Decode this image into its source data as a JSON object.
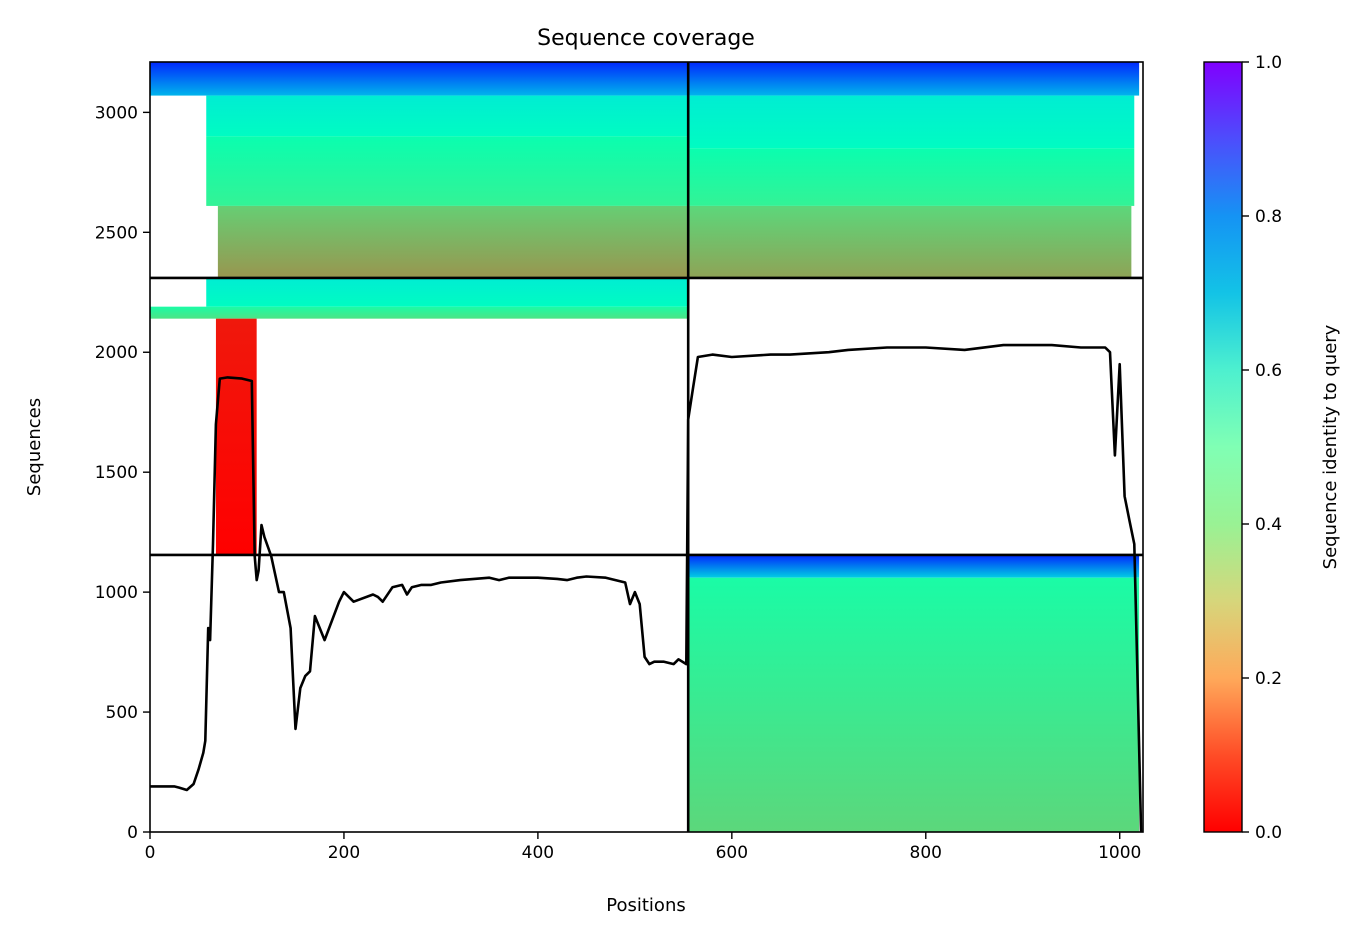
{
  "chart_data": {
    "type": "heatmap",
    "title": "Sequence coverage",
    "xlabel": "Positions",
    "ylabel": "Sequences",
    "xlim": [
      0,
      1024
    ],
    "ylim": [
      0,
      3210
    ],
    "x_ticks": [
      "0",
      "200",
      "400",
      "600",
      "800",
      "1000"
    ],
    "x_tick_values": [
      0,
      200,
      400,
      600,
      800,
      1000
    ],
    "y_ticks": [
      "0",
      "500",
      "1000",
      "1500",
      "2000",
      "2500",
      "3000"
    ],
    "y_tick_values": [
      0,
      500,
      1000,
      1500,
      2000,
      2500,
      3000
    ],
    "colorbar": {
      "label": "Sequence identity to query",
      "colormap": "rainbow_r",
      "range": [
        0.0,
        1.0
      ],
      "ticks": [
        "0.0",
        "0.2",
        "0.4",
        "0.6",
        "0.8",
        "1.0"
      ],
      "tick_values": [
        0.0,
        0.2,
        0.4,
        0.6,
        0.8,
        1.0
      ]
    },
    "grid": false,
    "block_boundaries": {
      "x": 555,
      "y": [
        1155,
        2310
      ]
    },
    "coverage_blocks": [
      {
        "x_range": [
          0,
          555
        ],
        "y_range": [
          2310,
          3210
        ],
        "bands": [
          {
            "y": [
              3070,
              3210
            ],
            "x": [
              0,
              555
            ],
            "identity_top": 0.95,
            "identity_bottom": 0.75
          },
          {
            "y": [
              2900,
              3070
            ],
            "x": [
              58,
              555
            ],
            "identity_top": 0.62,
            "identity_bottom": 0.55
          },
          {
            "y": [
              2610,
              2900
            ],
            "x": [
              58,
              555
            ],
            "identity_top": 0.48,
            "identity_bottom": 0.4
          },
          {
            "y": [
              2310,
              2610
            ],
            "x": [
              70,
              555
            ],
            "identity_top": 0.3,
            "identity_bottom": 0.2
          }
        ]
      },
      {
        "x_range": [
          555,
          1024
        ],
        "y_range": [
          2310,
          3210
        ],
        "bands": [
          {
            "y": [
              3070,
              3210
            ],
            "x": [
              555,
              1020
            ],
            "identity_top": 0.95,
            "identity_bottom": 0.75
          },
          {
            "y": [
              2850,
              3070
            ],
            "x": [
              555,
              1015
            ],
            "identity_top": 0.62,
            "identity_bottom": 0.55
          },
          {
            "y": [
              2610,
              2850
            ],
            "x": [
              555,
              1015
            ],
            "identity_top": 0.48,
            "identity_bottom": 0.4
          },
          {
            "y": [
              2310,
              2610
            ],
            "x": [
              555,
              1012
            ],
            "identity_top": 0.32,
            "identity_bottom": 0.22
          }
        ]
      },
      {
        "x_range": [
          0,
          555
        ],
        "y_range": [
          1155,
          2310
        ],
        "bands": [
          {
            "y": [
              2190,
              2310
            ],
            "x": [
              58,
              555
            ],
            "identity_top": 0.62,
            "identity_bottom": 0.55
          },
          {
            "y": [
              2140,
              2190
            ],
            "x": [
              0,
              555
            ],
            "identity_top": 0.45,
            "identity_bottom": 0.35
          },
          {
            "y": [
              1155,
              2140
            ],
            "x": [
              68,
              110
            ],
            "identity_top": 0.03,
            "identity_bottom": 0.0
          }
        ]
      },
      {
        "x_range": [
          555,
          1024
        ],
        "y_range": [
          0,
          1155
        ],
        "bands": [
          {
            "y": [
              1060,
              1155
            ],
            "x": [
              555,
              1020
            ],
            "identity_top": 0.95,
            "identity_bottom": 0.7
          },
          {
            "y": [
              0,
              1060
            ],
            "x": [
              555,
              1020
            ],
            "identity_top": 0.45,
            "identity_bottom": 0.32
          }
        ]
      }
    ],
    "series": [
      {
        "type": "line",
        "color": "#000000",
        "x": [
          0,
          10,
          25,
          30,
          38,
          45,
          50,
          55,
          57,
          60,
          62,
          65,
          68,
          72,
          80,
          95,
          105,
          108,
          110,
          112,
          115,
          118,
          125,
          133,
          138,
          145,
          150,
          155,
          160,
          165,
          170,
          180,
          195,
          200,
          205,
          210,
          230,
          235,
          240,
          250,
          260,
          265,
          270,
          280,
          290,
          300,
          320,
          350,
          360,
          370,
          400,
          420,
          430,
          440,
          450,
          470,
          490,
          495,
          500,
          505,
          510,
          515,
          520,
          530,
          540,
          545,
          553,
          555,
          560,
          565,
          580,
          600,
          640,
          660,
          700,
          720,
          760,
          800,
          840,
          880,
          930,
          960,
          985,
          990,
          995,
          1000,
          1005,
          1010,
          1015,
          1018,
          1022
        ],
        "y": [
          190,
          190,
          190,
          185,
          175,
          200,
          260,
          330,
          380,
          850,
          800,
          1200,
          1700,
          1890,
          1895,
          1890,
          1880,
          1150,
          1050,
          1090,
          1280,
          1230,
          1150,
          1000,
          1000,
          850,
          430,
          600,
          650,
          670,
          900,
          800,
          960,
          1000,
          980,
          960,
          990,
          980,
          960,
          1020,
          1030,
          990,
          1020,
          1030,
          1030,
          1040,
          1050,
          1060,
          1050,
          1060,
          1060,
          1055,
          1050,
          1060,
          1065,
          1060,
          1040,
          950,
          1000,
          950,
          730,
          700,
          710,
          710,
          700,
          720,
          700,
          1720,
          1850,
          1980,
          1990,
          1980,
          1990,
          1990,
          2000,
          2010,
          2020,
          2020,
          2010,
          2030,
          2030,
          2020,
          2020,
          2000,
          1570,
          1950,
          1400,
          1300,
          1200,
          700,
          0
        ]
      }
    ]
  }
}
